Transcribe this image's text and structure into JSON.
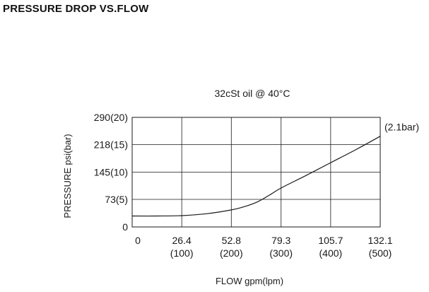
{
  "page": {
    "title": "PRESSURE DROP VS.FLOW"
  },
  "chart_data": {
    "type": "line",
    "subtitle": "32cSt oil @ 40°C",
    "xlabel": "FLOW gpm(lpm)",
    "ylabel": "PRESSURE psi(bar)",
    "x_ticks": [
      {
        "value": 0,
        "line1": "0",
        "line2": ""
      },
      {
        "value": 26.4,
        "line1": "26.4",
        "line2": "(100)"
      },
      {
        "value": 52.8,
        "line1": "52.8",
        "line2": "(200)"
      },
      {
        "value": 79.3,
        "line1": "79.3",
        "line2": "(300)"
      },
      {
        "value": 105.7,
        "line1": "105.7",
        "line2": "(400)"
      },
      {
        "value": 132.1,
        "line1": "132.1",
        "line2": "(500)"
      }
    ],
    "y_ticks": [
      {
        "value": 0,
        "label": "0"
      },
      {
        "value": 73,
        "label": "73(5)"
      },
      {
        "value": 145,
        "label": "145(10)"
      },
      {
        "value": 218,
        "label": "218(15)"
      },
      {
        "value": 290,
        "label": "290(20)"
      }
    ],
    "xlim": [
      0,
      132.1
    ],
    "ylim": [
      0,
      290
    ],
    "grid": true,
    "end_annotation": "(2.1bar)",
    "series": [
      {
        "color": "#1a1a1a",
        "points": [
          [
            0,
            29
          ],
          [
            13,
            29
          ],
          [
            26.4,
            30
          ],
          [
            39.6,
            35
          ],
          [
            52.8,
            45
          ],
          [
            60,
            54
          ],
          [
            67,
            67
          ],
          [
            73,
            84
          ],
          [
            79.3,
            103
          ],
          [
            92.5,
            136
          ],
          [
            105.7,
            170
          ],
          [
            118.9,
            204
          ],
          [
            132.1,
            240
          ]
        ]
      }
    ]
  }
}
